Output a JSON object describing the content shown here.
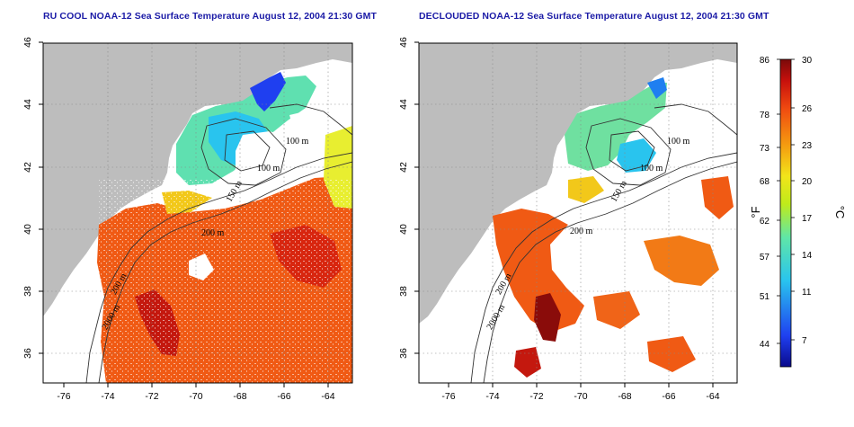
{
  "titles": {
    "left": "RU COOL NOAA-12 Sea Surface Temperature August 12, 2004 21:30 GMT",
    "right": "DECLOUDED NOAA-12 Sea Surface Temperature August 12, 2004 21:30 GMT"
  },
  "axes": {
    "x_ticks": [
      "-76",
      "-74",
      "-72",
      "-70",
      "-68",
      "-66",
      "-64"
    ],
    "y_ticks": [
      "46",
      "44",
      "42",
      "40",
      "38",
      "36"
    ]
  },
  "contour_labels": [
    "100 m",
    "100 m",
    "200 m",
    "150 m",
    "200 m",
    "2000 m"
  ],
  "colorbar": {
    "fahrenheit_unit": "°F",
    "celsius_unit": "°C",
    "fahrenheit_ticks": [
      "86",
      "78",
      "73",
      "68",
      "62",
      "57",
      "51",
      "44"
    ],
    "celsius_ticks": [
      "30",
      "26",
      "23",
      "20",
      "17",
      "14",
      "11",
      "7"
    ],
    "range_c": [
      3,
      30
    ]
  },
  "colors": {
    "land": "#bdbdbd",
    "title": "#1a1aa6",
    "cold": "#0a0a8c",
    "cool": "#29c4ee",
    "mid": "#f2e51a",
    "warm": "#f04a10",
    "hot": "#7a0a0a"
  }
}
